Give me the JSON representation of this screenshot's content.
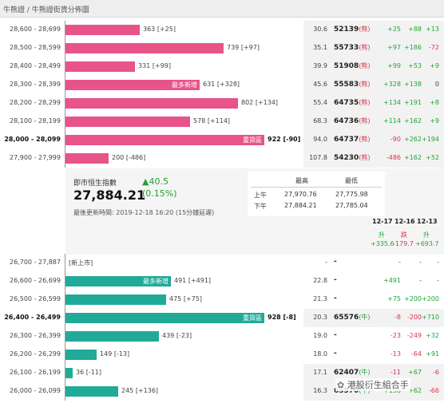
{
  "header": {
    "title": "牛熊證 / 牛熊證街貨分佈圖"
  },
  "bull_rows": [
    {
      "range": "28,600 - 28,699",
      "bar": 0.31,
      "vol": "363 [+25]",
      "ratio": "30.6",
      "code": "52139",
      "kind": "(熊)",
      "c1": "+25",
      "c2": "+88",
      "c3": "+13"
    },
    {
      "range": "28,500 - 28,599",
      "bar": 0.66,
      "vol": "739 [+97]",
      "ratio": "35.1",
      "code": "55733",
      "kind": "(熊)",
      "c1": "+97",
      "c2": "+186",
      "c3": "-72"
    },
    {
      "range": "28,400 - 28,499",
      "bar": 0.29,
      "vol": "331 [+99]",
      "ratio": "39.9",
      "code": "51908",
      "kind": "(熊)",
      "c1": "+99",
      "c2": "+53",
      "c3": "+9"
    },
    {
      "range": "28,300 - 28,399",
      "bar": 0.56,
      "tag": "最多新增",
      "vol": "631 [+328]",
      "ratio": "45.6",
      "code": "55583",
      "kind": "(熊)",
      "c1": "+328",
      "c2": "+138",
      "c3": "0"
    },
    {
      "range": "28,200 - 28,299",
      "bar": 0.72,
      "vol": "802 [+134]",
      "ratio": "55.4",
      "code": "64735",
      "kind": "(熊)",
      "c1": "+134",
      "c2": "+191",
      "c3": "+8"
    },
    {
      "range": "28,100 - 28,199",
      "bar": 0.52,
      "vol": "578 [+114]",
      "ratio": "68.3",
      "code": "64736",
      "kind": "(熊)",
      "c1": "+114",
      "c2": "+162",
      "c3": "+9"
    },
    {
      "range": "28,000 - 28,099",
      "bar": 0.83,
      "tag": "重貨區",
      "vol": "922 [-90]",
      "ratio": "94.0",
      "code": "64737",
      "kind": "(熊)",
      "c1": "-90",
      "c2": "+262",
      "c3": "+194",
      "bold": true
    },
    {
      "range": "27,900 - 27,999",
      "bar": 0.18,
      "vol": "200 [-486]",
      "ratio": "107.8",
      "code": "54230",
      "kind": "(熊)",
      "c1": "-486",
      "c2": "+162",
      "c3": "+52"
    }
  ],
  "index": {
    "label": "即市恒生指數",
    "value": "27,884.21",
    "change": "▲40.5",
    "pct": "(0.15%)",
    "updated": "最後更新時間: 2019-12-18 16:20 (15分鐘延遲)",
    "hl_high_label": "最高",
    "hl_low_label": "最低",
    "am_label": "上午",
    "pm_label": "下午",
    "am_high": "27,970.76",
    "am_low": "27,775.98",
    "pm_high": "27,884.21",
    "pm_low": "27,785.04",
    "dates": [
      "12-17",
      "12-16",
      "12-13"
    ],
    "directions": [
      "升",
      "跌",
      "升"
    ],
    "changes": [
      "+335.6",
      "-179.7",
      "+693.7"
    ]
  },
  "bear_rows": [
    {
      "range": "26,700 - 27,887",
      "bar": 0,
      "vol": "[新上市]",
      "ratio": "-",
      "code": "-",
      "kind": "",
      "c1": "-",
      "c2": "-",
      "c3": "-"
    },
    {
      "range": "26,600 - 26,699",
      "bar": 0.44,
      "tag": "最多新增",
      "vol": "491 [+491]",
      "ratio": "22.8",
      "code": "-",
      "kind": "",
      "c1": "+491",
      "c2": "-",
      "c3": "-"
    },
    {
      "range": "26,500 - 26,599",
      "bar": 0.42,
      "vol": "475 [+75]",
      "ratio": "21.3",
      "code": "-",
      "kind": "",
      "c1": "+75",
      "c2": "+200",
      "c3": "+200"
    },
    {
      "range": "26,400 - 26,499",
      "bar": 0.83,
      "tag": "重貨區",
      "vol": "928 [-8]",
      "ratio": "20.3",
      "code": "65576",
      "kind": "(牛)",
      "c1": "-8",
      "c2": "-200",
      "c3": "+710",
      "bold": true
    },
    {
      "range": "26,300 - 26,399",
      "bar": 0.39,
      "vol": "439 [-23]",
      "ratio": "19.0",
      "code": "-",
      "kind": "",
      "c1": "-23",
      "c2": "-249",
      "c3": "+32"
    },
    {
      "range": "26,200 - 26,299",
      "bar": 0.13,
      "vol": "149 [-13]",
      "ratio": "18.0",
      "code": "-",
      "kind": "",
      "c1": "-13",
      "c2": "-64",
      "c3": "+91"
    },
    {
      "range": "26,100 - 26,199",
      "bar": 0.03,
      "vol": "36 [-11]",
      "ratio": "17.1",
      "code": "62407",
      "kind": "(牛)",
      "c1": "-11",
      "c2": "+67",
      "c3": "-6"
    },
    {
      "range": "26,000 - 26,099",
      "bar": 0.22,
      "vol": "245 [+136]",
      "ratio": "16.3",
      "code": "65570",
      "kind": "(牛)",
      "c1": "+136",
      "c2": "+62",
      "c3": "-66"
    }
  ],
  "watermark": "港股衍生組合手"
}
